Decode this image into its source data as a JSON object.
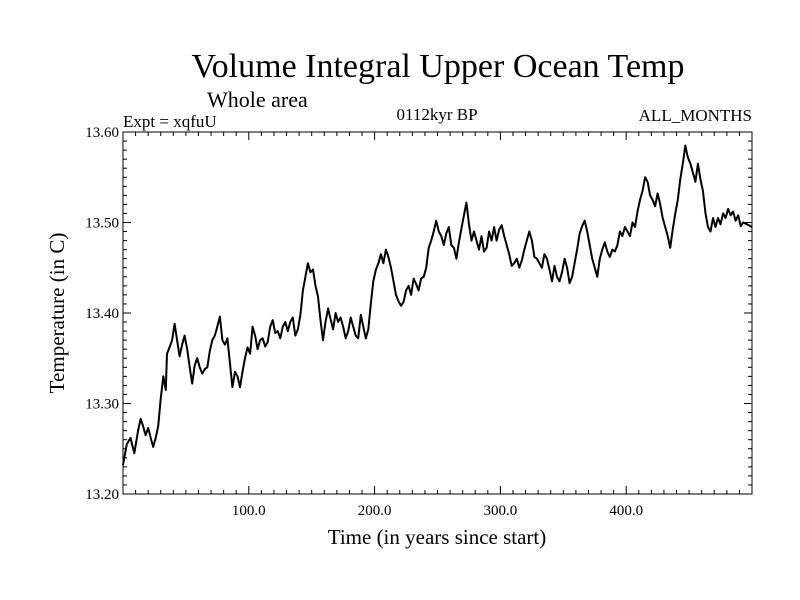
{
  "chart_data": {
    "type": "line",
    "title": "Volume Integral Upper Ocean Temp",
    "subtitle": "Whole area",
    "left_label": "Expt = xqfuU",
    "center_label": "0112kyr BP",
    "right_label": "ALL_MONTHS",
    "xlabel": "Time (in years since start)",
    "ylabel": "Temperature (in C)",
    "xlim": [
      0,
      500
    ],
    "ylim": [
      13.2,
      13.6
    ],
    "x_ticks": [
      {
        "value": 100,
        "label": "100.0"
      },
      {
        "value": 200,
        "label": "200.0"
      },
      {
        "value": 300,
        "label": "300.0"
      },
      {
        "value": 400,
        "label": "400.0"
      }
    ],
    "y_ticks": [
      {
        "value": 13.2,
        "label": "13.20"
      },
      {
        "value": 13.3,
        "label": "13.30"
      },
      {
        "value": 13.4,
        "label": "13.40"
      },
      {
        "value": 13.5,
        "label": "13.50"
      },
      {
        "value": 13.6,
        "label": "13.60"
      }
    ],
    "x_minor_step": 10,
    "y_minor_step": 0.01,
    "series": [
      {
        "name": "xqfuU",
        "color": "#000000",
        "points": [
          [
            0,
            13.232
          ],
          [
            3,
            13.255
          ],
          [
            6,
            13.262
          ],
          [
            9,
            13.245
          ],
          [
            12,
            13.27
          ],
          [
            14,
            13.283
          ],
          [
            16,
            13.275
          ],
          [
            18,
            13.265
          ],
          [
            20,
            13.273
          ],
          [
            22,
            13.262
          ],
          [
            24,
            13.252
          ],
          [
            26,
            13.262
          ],
          [
            28,
            13.275
          ],
          [
            30,
            13.305
          ],
          [
            32,
            13.33
          ],
          [
            34,
            13.315
          ],
          [
            35,
            13.355
          ],
          [
            37,
            13.362
          ],
          [
            39,
            13.37
          ],
          [
            41,
            13.388
          ],
          [
            43,
            13.37
          ],
          [
            45,
            13.352
          ],
          [
            47,
            13.365
          ],
          [
            49,
            13.375
          ],
          [
            51,
            13.36
          ],
          [
            53,
            13.34
          ],
          [
            55,
            13.322
          ],
          [
            57,
            13.342
          ],
          [
            59,
            13.35
          ],
          [
            61,
            13.34
          ],
          [
            63,
            13.333
          ],
          [
            65,
            13.338
          ],
          [
            67,
            13.34
          ],
          [
            69,
            13.358
          ],
          [
            71,
            13.37
          ],
          [
            73,
            13.375
          ],
          [
            75,
            13.385
          ],
          [
            77,
            13.396
          ],
          [
            79,
            13.37
          ],
          [
            81,
            13.365
          ],
          [
            83,
            13.372
          ],
          [
            85,
            13.345
          ],
          [
            87,
            13.318
          ],
          [
            89,
            13.335
          ],
          [
            91,
            13.33
          ],
          [
            93,
            13.318
          ],
          [
            95,
            13.335
          ],
          [
            97,
            13.35
          ],
          [
            99,
            13.362
          ],
          [
            101,
            13.355
          ],
          [
            103,
            13.385
          ],
          [
            105,
            13.375
          ],
          [
            107,
            13.36
          ],
          [
            109,
            13.37
          ],
          [
            111,
            13.372
          ],
          [
            113,
            13.363
          ],
          [
            115,
            13.368
          ],
          [
            117,
            13.385
          ],
          [
            119,
            13.392
          ],
          [
            121,
            13.378
          ],
          [
            123,
            13.38
          ],
          [
            125,
            13.372
          ],
          [
            127,
            13.385
          ],
          [
            129,
            13.39
          ],
          [
            131,
            13.38
          ],
          [
            133,
            13.39
          ],
          [
            135,
            13.395
          ],
          [
            137,
            13.375
          ],
          [
            139,
            13.382
          ],
          [
            141,
            13.398
          ],
          [
            143,
            13.425
          ],
          [
            145,
            13.44
          ],
          [
            147,
            13.455
          ],
          [
            149,
            13.445
          ],
          [
            151,
            13.448
          ],
          [
            153,
            13.43
          ],
          [
            155,
            13.418
          ],
          [
            157,
            13.392
          ],
          [
            159,
            13.37
          ],
          [
            161,
            13.39
          ],
          [
            163,
            13.405
          ],
          [
            165,
            13.393
          ],
          [
            167,
            13.382
          ],
          [
            169,
            13.4
          ],
          [
            171,
            13.39
          ],
          [
            173,
            13.395
          ],
          [
            175,
            13.385
          ],
          [
            177,
            13.372
          ],
          [
            179,
            13.38
          ],
          [
            181,
            13.395
          ],
          [
            183,
            13.385
          ],
          [
            185,
            13.375
          ],
          [
            187,
            13.372
          ],
          [
            189,
            13.398
          ],
          [
            191,
            13.385
          ],
          [
            193,
            13.372
          ],
          [
            195,
            13.382
          ],
          [
            197,
            13.41
          ],
          [
            199,
            13.435
          ],
          [
            201,
            13.448
          ],
          [
            203,
            13.455
          ],
          [
            205,
            13.465
          ],
          [
            207,
            13.455
          ],
          [
            209,
            13.47
          ],
          [
            211,
            13.462
          ],
          [
            213,
            13.45
          ],
          [
            215,
            13.435
          ],
          [
            217,
            13.42
          ],
          [
            219,
            13.413
          ],
          [
            221,
            13.408
          ],
          [
            223,
            13.412
          ],
          [
            225,
            13.425
          ],
          [
            227,
            13.43
          ],
          [
            229,
            13.42
          ],
          [
            231,
            13.438
          ],
          [
            233,
            13.432
          ],
          [
            235,
            13.425
          ],
          [
            237,
            13.438
          ],
          [
            239,
            13.44
          ],
          [
            241,
            13.45
          ],
          [
            243,
            13.472
          ],
          [
            245,
            13.48
          ],
          [
            247,
            13.49
          ],
          [
            249,
            13.502
          ],
          [
            251,
            13.49
          ],
          [
            253,
            13.485
          ],
          [
            255,
            13.475
          ],
          [
            257,
            13.488
          ],
          [
            259,
            13.495
          ],
          [
            261,
            13.475
          ],
          [
            263,
            13.472
          ],
          [
            265,
            13.46
          ],
          [
            267,
            13.478
          ],
          [
            269,
            13.493
          ],
          [
            271,
            13.508
          ],
          [
            273,
            13.522
          ],
          [
            275,
            13.498
          ],
          [
            277,
            13.48
          ],
          [
            279,
            13.49
          ],
          [
            281,
            13.48
          ],
          [
            283,
            13.47
          ],
          [
            285,
            13.485
          ],
          [
            287,
            13.468
          ],
          [
            289,
            13.472
          ],
          [
            291,
            13.49
          ],
          [
            293,
            13.48
          ],
          [
            295,
            13.495
          ],
          [
            297,
            13.48
          ],
          [
            299,
            13.492
          ],
          [
            301,
            13.497
          ],
          [
            303,
            13.485
          ],
          [
            305,
            13.475
          ],
          [
            307,
            13.465
          ],
          [
            309,
            13.452
          ],
          [
            311,
            13.455
          ],
          [
            313,
            13.46
          ],
          [
            315,
            13.45
          ],
          [
            317,
            13.458
          ],
          [
            319,
            13.47
          ],
          [
            321,
            13.48
          ],
          [
            323,
            13.49
          ],
          [
            325,
            13.48
          ],
          [
            327,
            13.462
          ],
          [
            329,
            13.46
          ],
          [
            331,
            13.455
          ],
          [
            333,
            13.45
          ],
          [
            335,
            13.465
          ],
          [
            337,
            13.46
          ],
          [
            339,
            13.448
          ],
          [
            341,
            13.435
          ],
          [
            343,
            13.452
          ],
          [
            345,
            13.44
          ],
          [
            347,
            13.435
          ],
          [
            349,
            13.445
          ],
          [
            351,
            13.46
          ],
          [
            353,
            13.45
          ],
          [
            355,
            13.433
          ],
          [
            357,
            13.44
          ],
          [
            359,
            13.455
          ],
          [
            361,
            13.47
          ],
          [
            363,
            13.488
          ],
          [
            365,
            13.496
          ],
          [
            367,
            13.502
          ],
          [
            369,
            13.49
          ],
          [
            371,
            13.475
          ],
          [
            373,
            13.46
          ],
          [
            375,
            13.45
          ],
          [
            377,
            13.44
          ],
          [
            379,
            13.46
          ],
          [
            381,
            13.47
          ],
          [
            383,
            13.478
          ],
          [
            385,
            13.468
          ],
          [
            387,
            13.462
          ],
          [
            389,
            13.47
          ],
          [
            391,
            13.468
          ],
          [
            393,
            13.475
          ],
          [
            395,
            13.49
          ],
          [
            397,
            13.485
          ],
          [
            399,
            13.495
          ],
          [
            401,
            13.49
          ],
          [
            403,
            13.485
          ],
          [
            405,
            13.5
          ],
          [
            407,
            13.495
          ],
          [
            409,
            13.512
          ],
          [
            411,
            13.525
          ],
          [
            413,
            13.535
          ],
          [
            415,
            13.55
          ],
          [
            417,
            13.545
          ],
          [
            419,
            13.53
          ],
          [
            421,
            13.525
          ],
          [
            423,
            13.518
          ],
          [
            425,
            13.532
          ],
          [
            427,
            13.52
          ],
          [
            429,
            13.505
          ],
          [
            431,
            13.495
          ],
          [
            433,
            13.485
          ],
          [
            435,
            13.472
          ],
          [
            437,
            13.492
          ],
          [
            439,
            13.51
          ],
          [
            441,
            13.525
          ],
          [
            443,
            13.548
          ],
          [
            445,
            13.565
          ],
          [
            447,
            13.585
          ],
          [
            449,
            13.572
          ],
          [
            451,
            13.565
          ],
          [
            453,
            13.555
          ],
          [
            455,
            13.545
          ],
          [
            457,
            13.565
          ],
          [
            459,
            13.548
          ],
          [
            461,
            13.535
          ],
          [
            463,
            13.51
          ],
          [
            465,
            13.495
          ],
          [
            467,
            13.49
          ],
          [
            469,
            13.505
          ],
          [
            471,
            13.495
          ],
          [
            473,
            13.505
          ],
          [
            475,
            13.498
          ],
          [
            477,
            13.51
          ],
          [
            479,
            13.505
          ],
          [
            481,
            13.515
          ],
          [
            483,
            13.508
          ],
          [
            485,
            13.512
          ],
          [
            487,
            13.502
          ],
          [
            489,
            13.508
          ],
          [
            491,
            13.496
          ],
          [
            493,
            13.5
          ],
          [
            496,
            13.498
          ],
          [
            500,
            13.495
          ]
        ]
      }
    ]
  }
}
